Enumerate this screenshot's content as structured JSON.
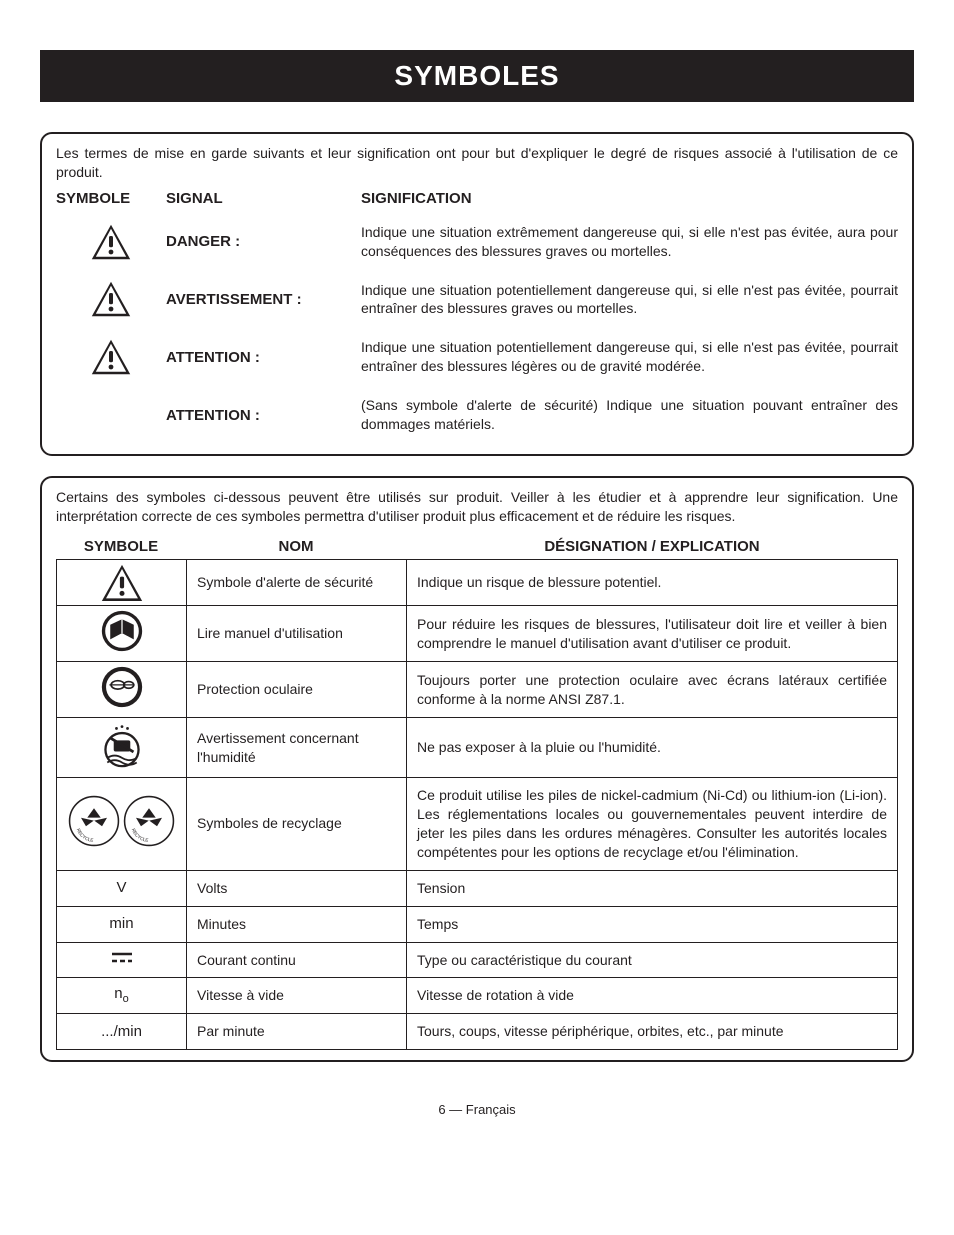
{
  "title": "SYMBOLES",
  "box1": {
    "intro": "Les termes de mise en garde suivants et leur signification ont pour but d'expliquer le degré de risques associé à l'utilisation de ce produit.",
    "headers": {
      "c1": "SYMBOLE",
      "c2": "SIGNAL",
      "c3": "SIGNIFICATION"
    },
    "rows": [
      {
        "signal": "DANGER :",
        "desc": "Indique une situation extrêmement dangereuse qui, si elle n'est pas évitée, aura pour conséquences des blessures graves ou mortelles.",
        "icon": true
      },
      {
        "signal": "AVERTISSEMENT :",
        "desc": "Indique une situation potentiellement dangereuse qui, si elle n'est pas évitée, pourrait entraîner des blessures graves ou mortelles.",
        "icon": true
      },
      {
        "signal": "ATTENTION :",
        "desc": "Indique une situation potentiellement dangereuse qui, si elle n'est pas évitée, pourrait entraîner des blessures légères ou de gravité modérée.",
        "icon": true
      },
      {
        "signal": "ATTENTION :",
        "desc": "(Sans symbole d'alerte de sécurité) Indique une situation pouvant entraîner des dommages matériels.",
        "icon": false
      }
    ]
  },
  "box2": {
    "intro": "Certains des symboles ci-dessous peuvent être utilisés sur produit. Veiller à les étudier et à apprendre leur signification. Une interprétation correcte de ces symboles permettra d'utiliser produit plus efficacement et de réduire les risques.",
    "headers": {
      "d1": "SYMBOLE",
      "d2": "NOM",
      "d3": "DÉSIGNATION / EXPLICATION"
    },
    "rows": [
      {
        "icon_type": "alert",
        "name": "Symbole d'alerte de sécurité",
        "desc": "Indique un risque de blessure potentiel."
      },
      {
        "icon_type": "manual",
        "name": "Lire manuel d'utilisation",
        "desc": "Pour réduire les risques de blessures, l'utilisateur doit lire et veiller à bien comprendre le manuel d'utilisation avant d'utiliser ce produit."
      },
      {
        "icon_type": "eye",
        "name": "Protection oculaire",
        "desc": "Toujours porter une protection oculaire avec écrans latéraux certifiée conforme à la norme ANSI Z87.1."
      },
      {
        "icon_type": "wet",
        "name": "Avertissement concernant l'humidité",
        "desc": "Ne pas exposer à la pluie ou l'humidité."
      },
      {
        "icon_type": "recycle",
        "name": "Symboles de recyclage",
        "desc": "Ce produit utilise les piles de nickel-cadmium (Ni-Cd) ou lithium-ion (Li-ion). Les réglementations locales ou gouvernementales peuvent interdire de jeter les piles dans les ordures ménagères. Consulter les autorités locales compétentes pour les options de recyclage et/ou l'élimination."
      },
      {
        "icon_type": "text",
        "icon_text": "V",
        "name": "Volts",
        "desc": "Tension"
      },
      {
        "icon_type": "text",
        "icon_text": "min",
        "name": "Minutes",
        "desc": "Temps"
      },
      {
        "icon_type": "dc",
        "name": "Courant continu",
        "desc": "Type ou caractéristique du courant"
      },
      {
        "icon_type": "no",
        "name": "Vitesse à vide",
        "desc": "Vitesse de rotation à vide"
      },
      {
        "icon_type": "text",
        "icon_text": ".../min",
        "name": "Par minute",
        "desc": "Tours, coups, vitesse périphérique, orbites, etc., par minute"
      }
    ]
  },
  "footer": "6 — Français"
}
